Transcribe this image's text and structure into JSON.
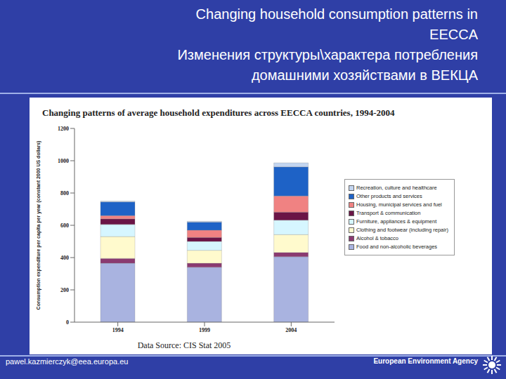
{
  "slide": {
    "title": [
      "Changing household consumption patterns in EECCA",
      "Изменения структуры\\характера потребления домашними хозяйствами в ВЕКЦА"
    ],
    "footer_left": "pawel.kazmierczyk@eea.europa.eu",
    "footer_right": "European Environment Agency"
  },
  "chart_data": {
    "type": "bar",
    "title": "Changing patterns of average household expenditures across EECCA countries, 1994-2004",
    "y_label": "Consumption expenditure per capita per year (constant 2000 US dollars)",
    "source": "Data Source: CIS Stat 2005",
    "categories": [
      "1994",
      "1999",
      "2004"
    ],
    "series": [
      {
        "name": "Food and non-alcoholic beverages",
        "color": "#a9b3e0",
        "values": [
          365,
          340,
          405
        ]
      },
      {
        "name": "Alcohol & tobacco",
        "color": "#8a3a70",
        "values": [
          30,
          25,
          27
        ]
      },
      {
        "name": "Clothing and footwear (including repair)",
        "color": "#fffacd",
        "values": [
          135,
          80,
          110
        ]
      },
      {
        "name": "Furniture, appliances & equipment",
        "color": "#d6f6ff",
        "values": [
          75,
          55,
          90
        ]
      },
      {
        "name": "Transport & communication",
        "color": "#6a1446",
        "values": [
          35,
          25,
          50
        ]
      },
      {
        "name": "Housing, municipal services and fuel",
        "color": "#f08282",
        "values": [
          20,
          45,
          100
        ]
      },
      {
        "name": "Other products and services",
        "color": "#1e62c6",
        "values": [
          85,
          50,
          180
        ]
      },
      {
        "name": "Recreation, culture and healthcare",
        "color": "#c3d5f0",
        "values": [
          5,
          5,
          25
        ]
      }
    ],
    "ylim": [
      0,
      1200
    ],
    "yticks": [
      0,
      200,
      400,
      600,
      800,
      1000,
      1200
    ],
    "stacked": true,
    "grid": false,
    "legend": "right"
  }
}
